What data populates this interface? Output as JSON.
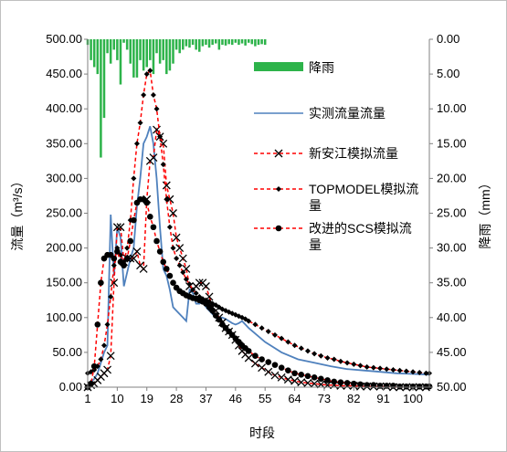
{
  "chart_data": {
    "type": "line",
    "xlabel": "时段",
    "ylabel": "流量（m³/s）",
    "y2label": "降雨（mm）",
    "ylim": [
      0,
      500
    ],
    "y2lim": [
      0,
      50
    ],
    "y2_inverted": true,
    "xlim": [
      1,
      105
    ],
    "x_ticks": [
      "1",
      "10",
      "19",
      "28",
      "37",
      "46",
      "55",
      "64",
      "73",
      "82",
      "91",
      "100"
    ],
    "y_ticks": [
      "0.00",
      "50.00",
      "100.00",
      "150.00",
      "200.00",
      "250.00",
      "300.00",
      "350.00",
      "400.00",
      "450.00",
      "500.00"
    ],
    "y2_ticks": [
      "50.00",
      "45.00",
      "40.00",
      "35.00",
      "30.00",
      "25.00",
      "20.00",
      "15.00",
      "10.00",
      "5.00",
      "0.00"
    ],
    "legend_position": "right",
    "legend_label_color": "#000000",
    "series": [
      {
        "name": "降雨",
        "kind": "bar",
        "axis": "y2",
        "color": "#2db34a",
        "x": [
          1,
          2,
          3,
          4,
          5,
          6,
          7,
          8,
          9,
          10,
          11,
          12,
          13,
          14,
          15,
          16,
          17,
          18,
          19,
          20,
          21,
          22,
          23,
          24,
          25,
          26,
          27,
          28,
          29,
          30,
          31,
          32,
          33,
          34,
          35,
          36,
          37,
          38,
          39,
          40,
          41,
          42,
          43,
          44,
          45,
          46,
          47,
          48,
          49,
          50,
          51,
          52,
          53,
          54,
          55
        ],
        "values": [
          0.8,
          3.0,
          4.0,
          5.0,
          17.0,
          11.3,
          2.0,
          3.5,
          1.5,
          3.0,
          6.5,
          0.5,
          1.5,
          3.5,
          5.5,
          5.5,
          3.0,
          4.5,
          4.0,
          3.0,
          5.0,
          2.0,
          3.5,
          3.0,
          5.0,
          4.5,
          3.5,
          1.5,
          2.0,
          1.5,
          1.0,
          1.2,
          0.8,
          1.5,
          1.8,
          1.0,
          0.8,
          1.2,
          0.8,
          0.6,
          1.5,
          0.8,
          0.9,
          0.7,
          0.8,
          0.5,
          0.8,
          0.6,
          0.9,
          0.5,
          0.7,
          1.0,
          0.8,
          0.7,
          0.8
        ]
      },
      {
        "name": "实测流量流量",
        "kind": "line",
        "color": "#4f81bd",
        "x": [
          1,
          2,
          3,
          4,
          5,
          6,
          7,
          8,
          9,
          10,
          11,
          12,
          13,
          14,
          15,
          16,
          17,
          18,
          19,
          20,
          21,
          22,
          23,
          24,
          25,
          26,
          27,
          28,
          29,
          30,
          31,
          32,
          33,
          34,
          35,
          36,
          37,
          38,
          39,
          40,
          41,
          42,
          43,
          44,
          45,
          46,
          47,
          48,
          49,
          50,
          55,
          60,
          65,
          70,
          75,
          80,
          85,
          90,
          95,
          100,
          105
        ],
        "values": [
          5,
          8,
          12,
          20,
          35,
          50,
          60,
          248,
          160,
          230,
          215,
          145,
          165,
          185,
          200,
          260,
          300,
          350,
          360,
          375,
          350,
          300,
          230,
          170,
          160,
          140,
          115,
          110,
          105,
          100,
          95,
          140,
          135,
          120,
          120,
          125,
          115,
          110,
          105,
          100,
          100,
          100,
          98,
          95,
          92,
          90,
          92,
          95,
          90,
          85,
          65,
          50,
          40,
          35,
          30,
          26,
          24,
          22,
          20,
          19,
          18
        ]
      },
      {
        "name": "新安江模拟流量",
        "kind": "line-marker",
        "marker": "x",
        "color": "#ff0000",
        "marker_color": "#000000",
        "x": [
          1,
          2,
          3,
          4,
          5,
          6,
          7,
          8,
          9,
          10,
          11,
          12,
          13,
          14,
          15,
          16,
          17,
          18,
          19,
          20,
          21,
          22,
          23,
          24,
          25,
          26,
          27,
          28,
          29,
          30,
          31,
          32,
          33,
          34,
          35,
          36,
          37,
          38,
          39,
          40,
          41,
          42,
          43,
          44,
          45,
          46,
          47,
          48,
          49,
          50,
          52,
          54,
          56,
          58,
          60,
          62,
          64,
          66,
          68,
          70,
          72,
          74,
          76,
          78,
          80,
          82,
          84,
          86,
          88,
          90,
          92,
          94,
          96,
          98,
          100,
          102,
          104
        ],
        "values": [
          0,
          3,
          5,
          10,
          15,
          20,
          25,
          45,
          150,
          230,
          230,
          180,
          185,
          185,
          185,
          195,
          175,
          170,
          270,
          325,
          330,
          370,
          360,
          350,
          290,
          270,
          250,
          215,
          200,
          185,
          170,
          145,
          140,
          145,
          150,
          150,
          145,
          130,
          115,
          110,
          100,
          93,
          85,
          80,
          75,
          68,
          60,
          52,
          47,
          42,
          34,
          28,
          22,
          17,
          14,
          11,
          9,
          7,
          6,
          5,
          4,
          3,
          3,
          2,
          2,
          2,
          1,
          1,
          1,
          1,
          1,
          0,
          0,
          0,
          0,
          0,
          0
        ]
      },
      {
        "name": "TOPMODEL模拟流量",
        "kind": "line-marker",
        "marker": "diamond",
        "color": "#ff0000",
        "marker_color": "#000000",
        "x": [
          1,
          2,
          3,
          4,
          5,
          6,
          7,
          8,
          9,
          10,
          11,
          12,
          13,
          14,
          15,
          16,
          17,
          18,
          19,
          20,
          21,
          22,
          23,
          24,
          25,
          26,
          27,
          28,
          29,
          30,
          31,
          32,
          33,
          34,
          35,
          36,
          37,
          38,
          39,
          40,
          41,
          42,
          43,
          44,
          45,
          46,
          47,
          48,
          49,
          50,
          52,
          54,
          56,
          58,
          60,
          62,
          64,
          66,
          68,
          70,
          72,
          74,
          76,
          78,
          80,
          82,
          84,
          86,
          88,
          90,
          92,
          94,
          96,
          98,
          100,
          102,
          104,
          105
        ],
        "values": [
          20,
          22,
          25,
          30,
          40,
          60,
          90,
          130,
          175,
          200,
          190,
          180,
          200,
          240,
          300,
          350,
          380,
          420,
          450,
          455,
          420,
          400,
          360,
          320,
          270,
          230,
          200,
          185,
          175,
          165,
          155,
          148,
          140,
          135,
          130,
          127,
          125,
          123,
          120,
          118,
          115,
          112,
          110,
          108,
          106,
          104,
          102,
          100,
          98,
          95,
          90,
          85,
          80,
          75,
          70,
          65,
          60,
          56,
          52,
          48,
          45,
          42,
          40,
          37,
          35,
          33,
          31,
          29,
          28,
          27,
          26,
          25,
          24,
          23,
          22,
          21,
          20,
          20
        ]
      },
      {
        "name": "改进的SCS模拟流量",
        "kind": "line-marker",
        "marker": "circle",
        "color": "#ff0000",
        "marker_color": "#000000",
        "x": [
          1,
          2,
          3,
          4,
          5,
          6,
          7,
          8,
          9,
          10,
          11,
          12,
          13,
          14,
          15,
          16,
          17,
          18,
          19,
          20,
          21,
          22,
          23,
          24,
          25,
          26,
          27,
          28,
          29,
          30,
          31,
          32,
          33,
          34,
          35,
          36,
          37,
          38,
          39,
          40,
          41,
          42,
          43,
          44,
          45,
          46,
          47,
          48,
          49,
          50,
          52,
          54,
          56,
          58,
          60,
          62,
          64,
          66,
          68,
          70,
          72,
          74,
          76,
          78,
          80,
          82,
          84,
          86,
          88,
          90,
          92,
          94,
          96,
          98,
          100,
          102,
          104,
          105
        ],
        "values": [
          0,
          5,
          30,
          90,
          150,
          185,
          190,
          190,
          185,
          195,
          180,
          175,
          185,
          210,
          240,
          265,
          270,
          270,
          265,
          245,
          230,
          210,
          195,
          180,
          170,
          160,
          150,
          143,
          138,
          135,
          132,
          130,
          128,
          127,
          125,
          123,
          120,
          115,
          110,
          103,
          97,
          90,
          85,
          80,
          75,
          70,
          65,
          60,
          56,
          52,
          45,
          40,
          36,
          32,
          28,
          24,
          20,
          18,
          16,
          14,
          12,
          10,
          8,
          7,
          6,
          5,
          4,
          3,
          3,
          2,
          2,
          2,
          1,
          1,
          1,
          1,
          1,
          1
        ]
      }
    ]
  }
}
